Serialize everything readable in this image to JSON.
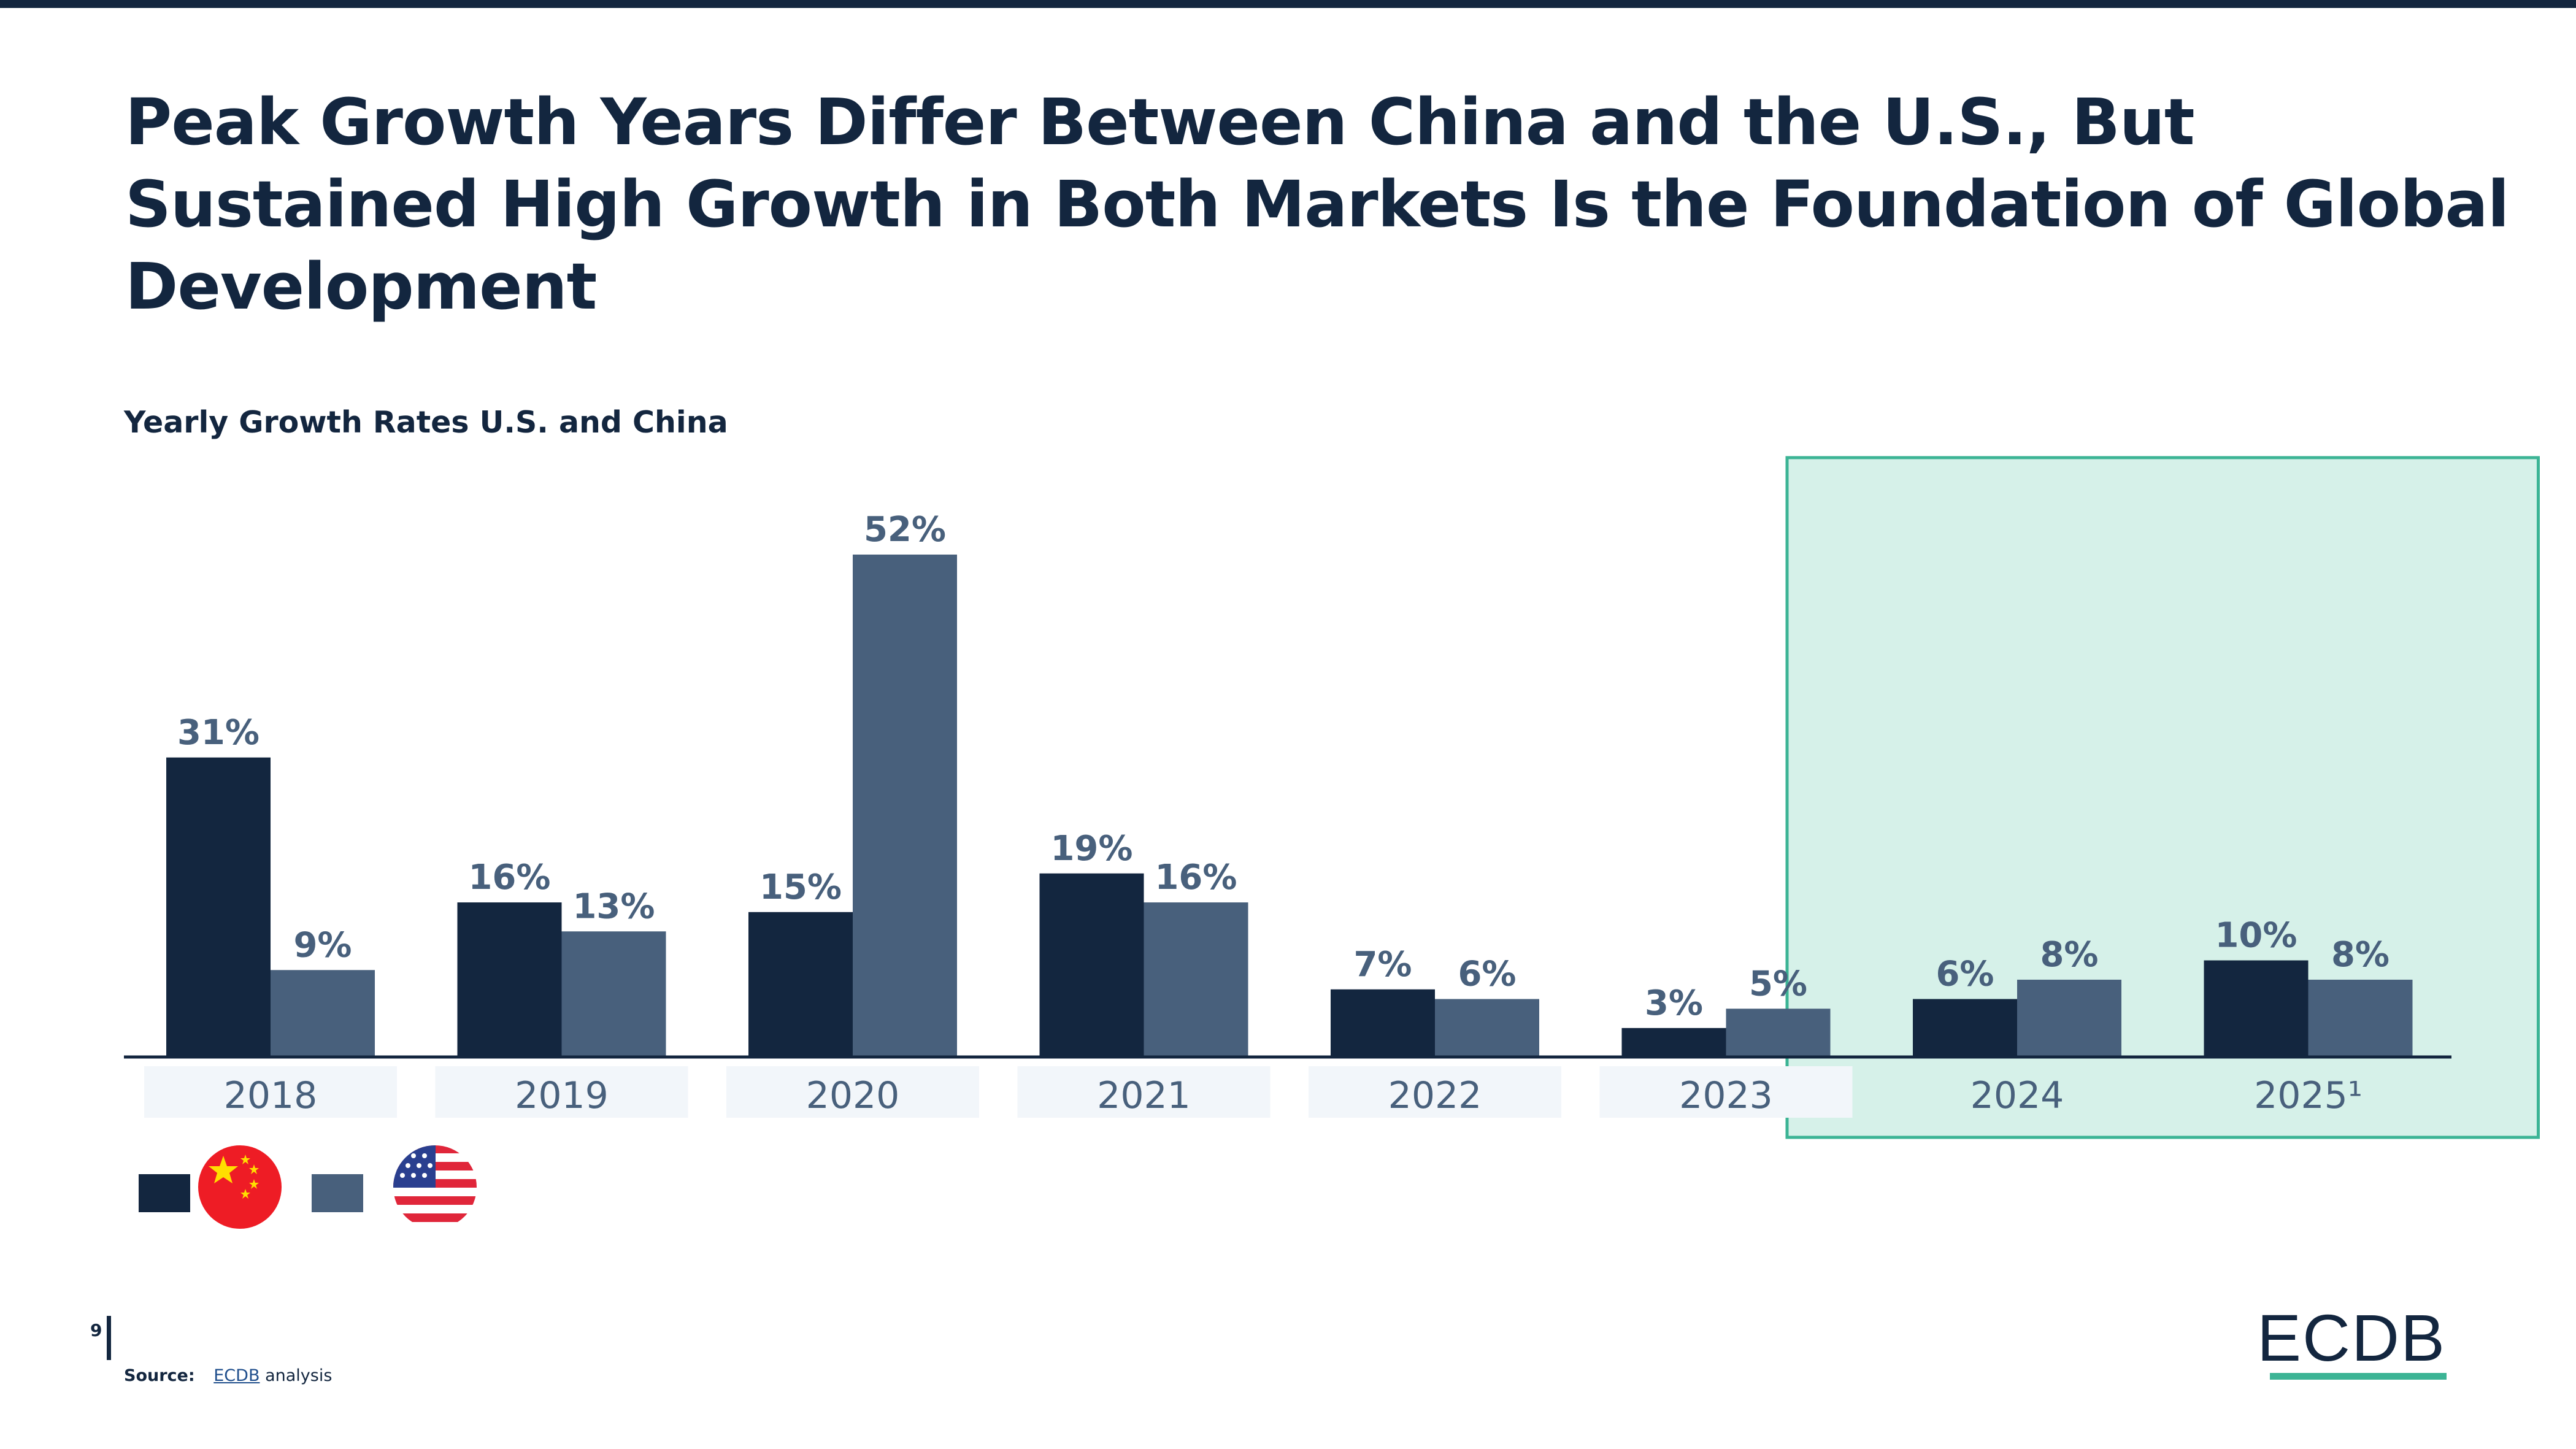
{
  "page": {
    "title": "Peak Growth Years Differ Between China and the U.S., But Sustained High Growth in Both Markets Is the Foundation of Global Development",
    "page_number": "9",
    "source_label": "Source:",
    "source_link": "ECDB",
    "source_text": "analysis",
    "logo": "ECDB"
  },
  "colors": {
    "china": "#13263f",
    "us": "#48607c",
    "highlight_fill": "#d6f1e9",
    "highlight_border": "#3cb495",
    "category_box": "#f2f6fa",
    "label": "#48607c"
  },
  "legend": {
    "items": [
      {
        "series": "China",
        "icon": "china-flag-icon"
      },
      {
        "series": "U.S.",
        "icon": "us-flag-icon"
      }
    ]
  },
  "chart_data": {
    "type": "bar",
    "title": "Yearly Growth Rates U.S. and China",
    "xlabel": "",
    "ylabel": "",
    "categories": [
      "2018",
      "2019",
      "2020",
      "2021",
      "2022",
      "2023",
      "2024",
      "2025¹"
    ],
    "series": [
      {
        "name": "China",
        "values": [
          31,
          16,
          15,
          19,
          7,
          3,
          6,
          10
        ],
        "labels": [
          "31%",
          "16%",
          "15%",
          "19%",
          "7%",
          "3%",
          "6%",
          "10%"
        ]
      },
      {
        "name": "U.S.",
        "values": [
          9,
          13,
          52,
          16,
          6,
          5,
          8,
          8
        ],
        "labels": [
          "9%",
          "13%",
          "52%",
          "16%",
          "6%",
          "5%",
          "8%",
          "8%"
        ]
      }
    ],
    "highlighted_categories": [
      "2024",
      "2025¹"
    ],
    "ylim": [
      0,
      52
    ],
    "grid": false,
    "legend_position": "bottom-left"
  }
}
